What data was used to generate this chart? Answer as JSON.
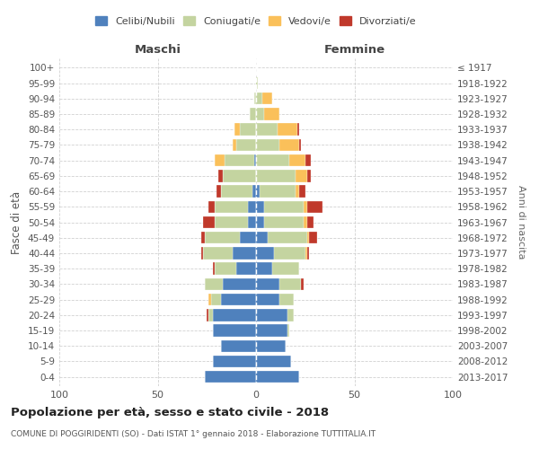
{
  "age_groups": [
    "0-4",
    "5-9",
    "10-14",
    "15-19",
    "20-24",
    "25-29",
    "30-34",
    "35-39",
    "40-44",
    "45-49",
    "50-54",
    "55-59",
    "60-64",
    "65-69",
    "70-74",
    "75-79",
    "80-84",
    "85-89",
    "90-94",
    "95-99",
    "100+"
  ],
  "birth_years": [
    "2013-2017",
    "2008-2012",
    "2003-2007",
    "1998-2002",
    "1993-1997",
    "1988-1992",
    "1983-1987",
    "1978-1982",
    "1973-1977",
    "1968-1972",
    "1963-1967",
    "1958-1962",
    "1953-1957",
    "1948-1952",
    "1943-1947",
    "1938-1942",
    "1933-1937",
    "1928-1932",
    "1923-1927",
    "1918-1922",
    "≤ 1917"
  ],
  "males": {
    "celibi": [
      26,
      22,
      18,
      22,
      22,
      18,
      17,
      10,
      12,
      8,
      4,
      4,
      2,
      0,
      1,
      0,
      0,
      0,
      0,
      0,
      0
    ],
    "coniugati": [
      0,
      0,
      0,
      0,
      2,
      5,
      9,
      11,
      15,
      18,
      17,
      17,
      16,
      17,
      15,
      10,
      8,
      3,
      1,
      0,
      0
    ],
    "vedovi": [
      0,
      0,
      0,
      0,
      0,
      1,
      0,
      0,
      0,
      0,
      0,
      0,
      0,
      0,
      5,
      2,
      3,
      0,
      0,
      0,
      0
    ],
    "divorziati": [
      0,
      0,
      0,
      0,
      1,
      0,
      0,
      1,
      1,
      2,
      6,
      3,
      2,
      2,
      0,
      0,
      0,
      0,
      0,
      0,
      0
    ]
  },
  "females": {
    "nubili": [
      22,
      18,
      15,
      16,
      16,
      12,
      12,
      8,
      9,
      6,
      4,
      4,
      2,
      0,
      0,
      0,
      0,
      0,
      0,
      0,
      0
    ],
    "coniugate": [
      0,
      0,
      0,
      1,
      3,
      7,
      11,
      14,
      16,
      20,
      20,
      20,
      18,
      20,
      17,
      12,
      11,
      4,
      3,
      1,
      0
    ],
    "vedove": [
      0,
      0,
      0,
      0,
      0,
      0,
      0,
      0,
      1,
      1,
      2,
      2,
      2,
      6,
      8,
      10,
      10,
      8,
      5,
      0,
      0
    ],
    "divorziate": [
      0,
      0,
      0,
      0,
      0,
      0,
      1,
      0,
      1,
      4,
      3,
      8,
      3,
      2,
      3,
      1,
      1,
      0,
      0,
      0,
      0
    ]
  },
  "colors": {
    "celibi_nubili": "#4f81bd",
    "coniugati": "#c4d4a0",
    "vedovi": "#fac05a",
    "divorziati": "#c0392b"
  },
  "title": "Popolazione per età, sesso e stato civile - 2018",
  "subtitle": "COMUNE DI POGGIRIDENTI (SO) - Dati ISTAT 1° gennaio 2018 - Elaborazione TUTTITALIA.IT",
  "ylabel": "Fasce di età",
  "right_label": "Anni di nascita",
  "xlim": 100,
  "bg_color": "#ffffff",
  "grid_color": "#cccccc"
}
